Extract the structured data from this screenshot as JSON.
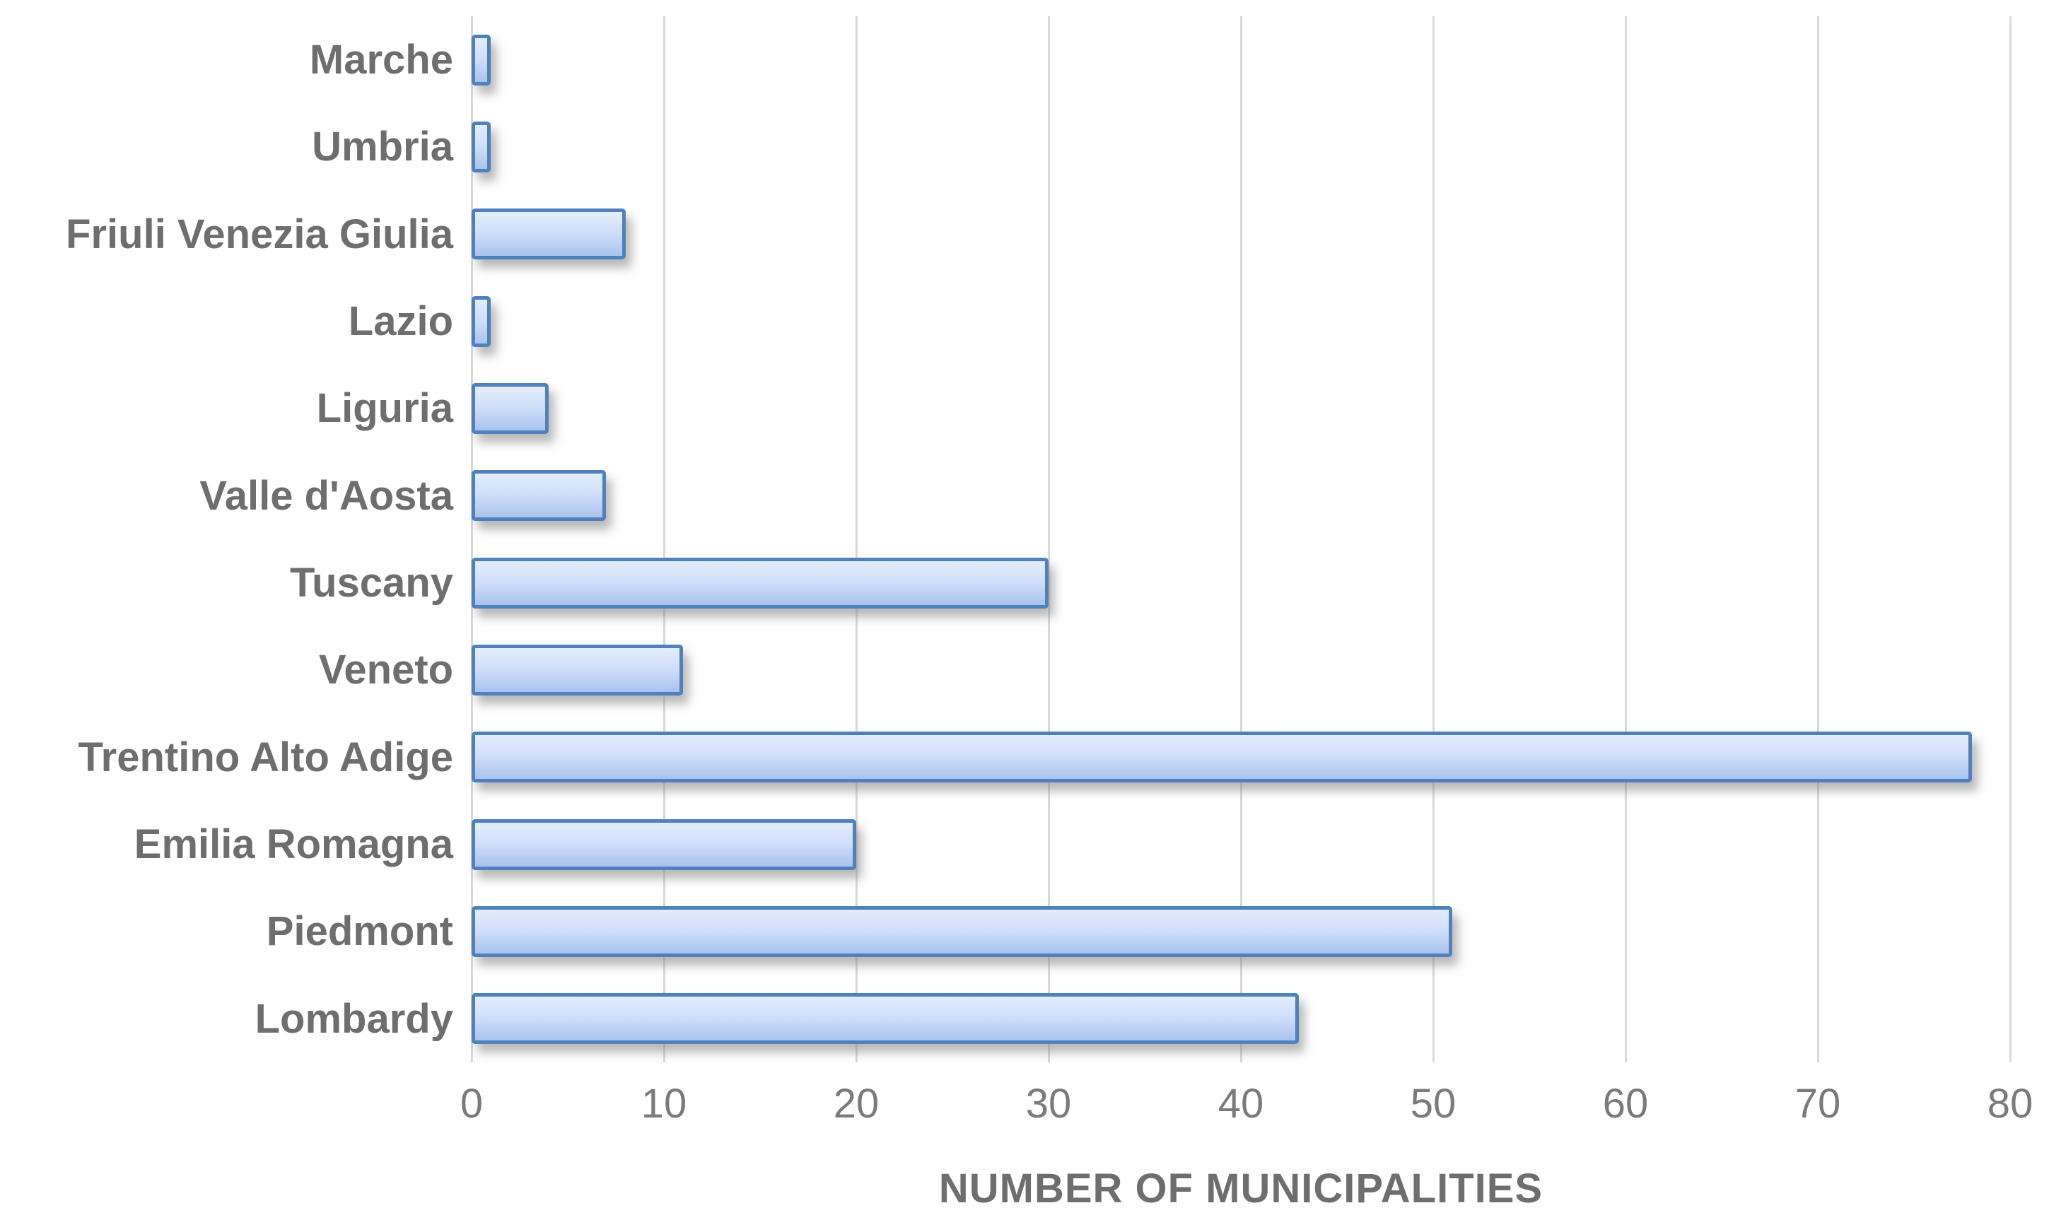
{
  "chart_data": {
    "type": "bar",
    "orientation": "horizontal",
    "title": "",
    "xlabel": "NUMBER OF MUNICIPALITIES",
    "ylabel": "",
    "categories": [
      "Marche",
      "Umbria",
      "Friuli Venezia Giulia",
      "Lazio",
      "Liguria",
      "Valle d'Aosta",
      "Tuscany",
      "Veneto",
      "Trentino Alto Adige",
      "Emilia Romagna",
      "Piedmont",
      "Lombardy"
    ],
    "values": [
      1,
      1,
      8,
      1,
      4,
      7,
      30,
      11,
      78,
      20,
      51,
      43
    ],
    "xlim": [
      0,
      80
    ],
    "xticks": [
      0,
      10,
      20,
      30,
      40,
      50,
      60,
      70,
      80
    ],
    "grid": "vertical-gridlines-on",
    "legend": "none",
    "colors": {
      "bar_fill_top": "#e4edfc",
      "bar_fill_mid": "#cdddf9",
      "bar_fill_bottom": "#a9c2ee",
      "bar_border": "#4f81bd",
      "gridline": "#d9d9d9",
      "category_label_text": "#6e6e6e",
      "tick_label_text": "#7a7a7a",
      "axis_title_text": "#6e6e6e",
      "background": "#ffffff"
    }
  }
}
